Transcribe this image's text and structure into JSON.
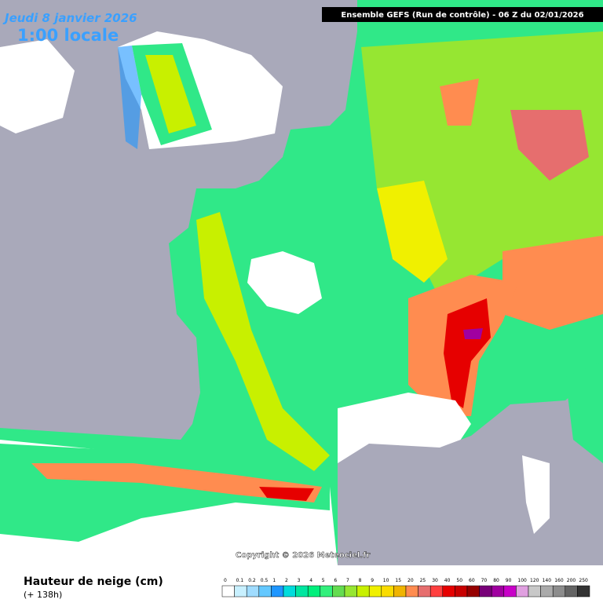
{
  "header": {
    "date": "Jeudi 8 janvier 2026",
    "time": "1:00 locale",
    "model": "Ensemble GEFS  (Run de contrôle)  -  06 Z du 02/01/2026"
  },
  "copyright": "Copyright © 2026 Meteociel.fr",
  "legend": {
    "title": "Hauteur de neige (cm)",
    "lead_time": "(+ 138h)",
    "items": [
      {
        "label": "0",
        "color": "#ffffff"
      },
      {
        "label": "0.1",
        "color": "#c8f0ff"
      },
      {
        "label": "0.2",
        "color": "#a0dcff"
      },
      {
        "label": "0.5",
        "color": "#64c8ff"
      },
      {
        "label": "1",
        "color": "#1e96ff"
      },
      {
        "label": "2",
        "color": "#00dcdc"
      },
      {
        "label": "3",
        "color": "#00e6a0"
      },
      {
        "label": "4",
        "color": "#00ef7c"
      },
      {
        "label": "5",
        "color": "#32f07c"
      },
      {
        "label": "6",
        "color": "#64dc50"
      },
      {
        "label": "7",
        "color": "#96e632"
      },
      {
        "label": "8",
        "color": "#c8f000"
      },
      {
        "label": "9",
        "color": "#f0f000"
      },
      {
        "label": "10",
        "color": "#fadc00"
      },
      {
        "label": "15",
        "color": "#f0b400"
      },
      {
        "label": "20",
        "color": "#ff8c50"
      },
      {
        "label": "25",
        "color": "#e66e6e"
      },
      {
        "label": "30",
        "color": "#ff4040"
      },
      {
        "label": "40",
        "color": "#e60000"
      },
      {
        "label": "50",
        "color": "#c80000"
      },
      {
        "label": "60",
        "color": "#960000"
      },
      {
        "label": "70",
        "color": "#780078"
      },
      {
        "label": "80",
        "color": "#a000a0"
      },
      {
        "label": "90",
        "color": "#c800c8"
      },
      {
        "label": "100",
        "color": "#e0a0e0"
      },
      {
        "label": "120",
        "color": "#c8c8c8"
      },
      {
        "label": "140",
        "color": "#aaaaaa"
      },
      {
        "label": "160",
        "color": "#8c8c8c"
      },
      {
        "label": "200",
        "color": "#646464"
      },
      {
        "label": "250",
        "color": "#323232"
      }
    ]
  }
}
